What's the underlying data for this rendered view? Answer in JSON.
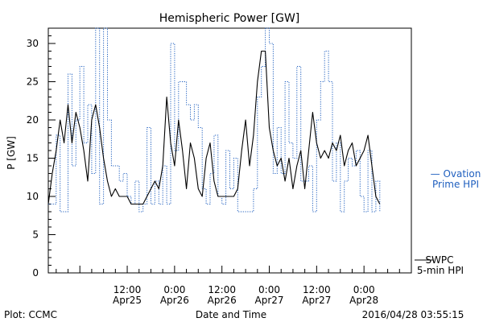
{
  "chart_data": {
    "type": "line",
    "title": "Hemispheric Power [GW]",
    "xlabel": "Date and Time",
    "ylabel": "P [GW]",
    "ylim": [
      0,
      32
    ],
    "xlim_hours": [
      -8,
      84
    ],
    "yticks": [
      0,
      5,
      10,
      15,
      20,
      25,
      30
    ],
    "xticks": [
      {
        "hours": 12,
        "line1": "12:00",
        "line2": "Apr25"
      },
      {
        "hours": 24,
        "line1": "0:00",
        "line2": "Apr26"
      },
      {
        "hours": 36,
        "line1": "12:00",
        "line2": "Apr26"
      },
      {
        "hours": 48,
        "line1": "0:00",
        "line2": "Apr27"
      },
      {
        "hours": 60,
        "line1": "12:00",
        "line2": "Apr27"
      },
      {
        "hours": 72,
        "line1": "0:00",
        "line2": "Apr28"
      }
    ],
    "grid": false,
    "legend_position": "right",
    "series": [
      {
        "name": "Ovation Prime HPI",
        "legend_line1": "— Ovation",
        "legend_line2": "Prime HPI",
        "color": "#1f5fbf",
        "style": "dotted-step",
        "x": [
          -8,
          -6,
          -5,
          -3,
          -2,
          -1,
          0,
          1,
          2,
          3,
          4,
          5,
          6,
          7,
          8,
          9,
          10,
          11,
          12,
          13,
          14,
          15,
          16,
          17,
          18,
          19,
          20,
          21,
          22,
          23,
          24,
          25,
          26,
          27,
          28,
          29,
          30,
          31,
          32,
          33,
          34,
          35,
          36,
          37,
          38,
          39,
          40,
          41,
          42,
          43,
          44,
          45,
          46,
          47,
          48,
          49,
          50,
          51,
          52,
          53,
          54,
          55,
          56,
          57,
          58,
          59,
          60,
          61,
          62,
          63,
          64,
          65,
          66,
          67,
          68,
          69,
          70,
          71,
          72,
          73,
          74,
          75,
          76
        ],
        "y": [
          9,
          18,
          8,
          26,
          14,
          20,
          27,
          17,
          22,
          13,
          32,
          9,
          32,
          20,
          14,
          14,
          12,
          13,
          10,
          9,
          12,
          8,
          9,
          19,
          9,
          12,
          9,
          14,
          9,
          30,
          16,
          25,
          25,
          22,
          20,
          22,
          19,
          11,
          9,
          13,
          18,
          10,
          9,
          16,
          11,
          15,
          8,
          8,
          8,
          8,
          11,
          23,
          27,
          32,
          30,
          13,
          19,
          13,
          25,
          17,
          15,
          27,
          12,
          12,
          14,
          8,
          20,
          25,
          29,
          25,
          12,
          17,
          8,
          12,
          15,
          14,
          16,
          10,
          8,
          16,
          8,
          12,
          8
        ]
      },
      {
        "name": "SWPC 5-min HPI",
        "legend_line1": "SWPC",
        "legend_line2": "5-min HPI",
        "color": "#000000",
        "style": "solid",
        "x": [
          -8,
          -7,
          -6,
          -5,
          -4,
          -3,
          -2,
          -1,
          0,
          1,
          2,
          3,
          4,
          5,
          6,
          7,
          8,
          9,
          10,
          11,
          12,
          13,
          14,
          15,
          16,
          17,
          18,
          19,
          20,
          21,
          22,
          23,
          24,
          25,
          26,
          27,
          28,
          29,
          30,
          31,
          32,
          33,
          34,
          35,
          36,
          37,
          38,
          39,
          40,
          41,
          42,
          43,
          44,
          45,
          46,
          47,
          48,
          49,
          50,
          51,
          52,
          53,
          54,
          55,
          56,
          57,
          58,
          59,
          60,
          61,
          62,
          63,
          64,
          65,
          66,
          67,
          68,
          69,
          70,
          71,
          72,
          73,
          74,
          75,
          76
        ],
        "y": [
          9,
          13,
          16,
          20,
          17,
          22,
          17,
          21,
          19,
          16,
          12,
          20,
          22,
          19,
          15,
          12,
          10,
          11,
          10,
          10,
          10,
          9,
          9,
          9,
          9,
          10,
          11,
          12,
          11,
          14,
          23,
          17,
          14,
          20,
          16,
          11,
          17,
          15,
          11,
          10,
          15,
          17,
          12,
          10,
          10,
          10,
          10,
          10,
          11,
          16,
          20,
          14,
          18,
          25,
          29,
          29,
          19,
          16,
          14,
          15,
          12,
          15,
          11,
          14,
          16,
          11,
          16,
          21,
          17,
          15,
          16,
          15,
          17,
          16,
          18,
          14,
          16,
          17,
          14,
          15,
          16,
          18,
          14,
          10,
          9
        ]
      }
    ]
  },
  "footer": {
    "left": "Plot: CCMC",
    "center": "Date and Time",
    "right": "2016/04/28 03:55:15"
  }
}
